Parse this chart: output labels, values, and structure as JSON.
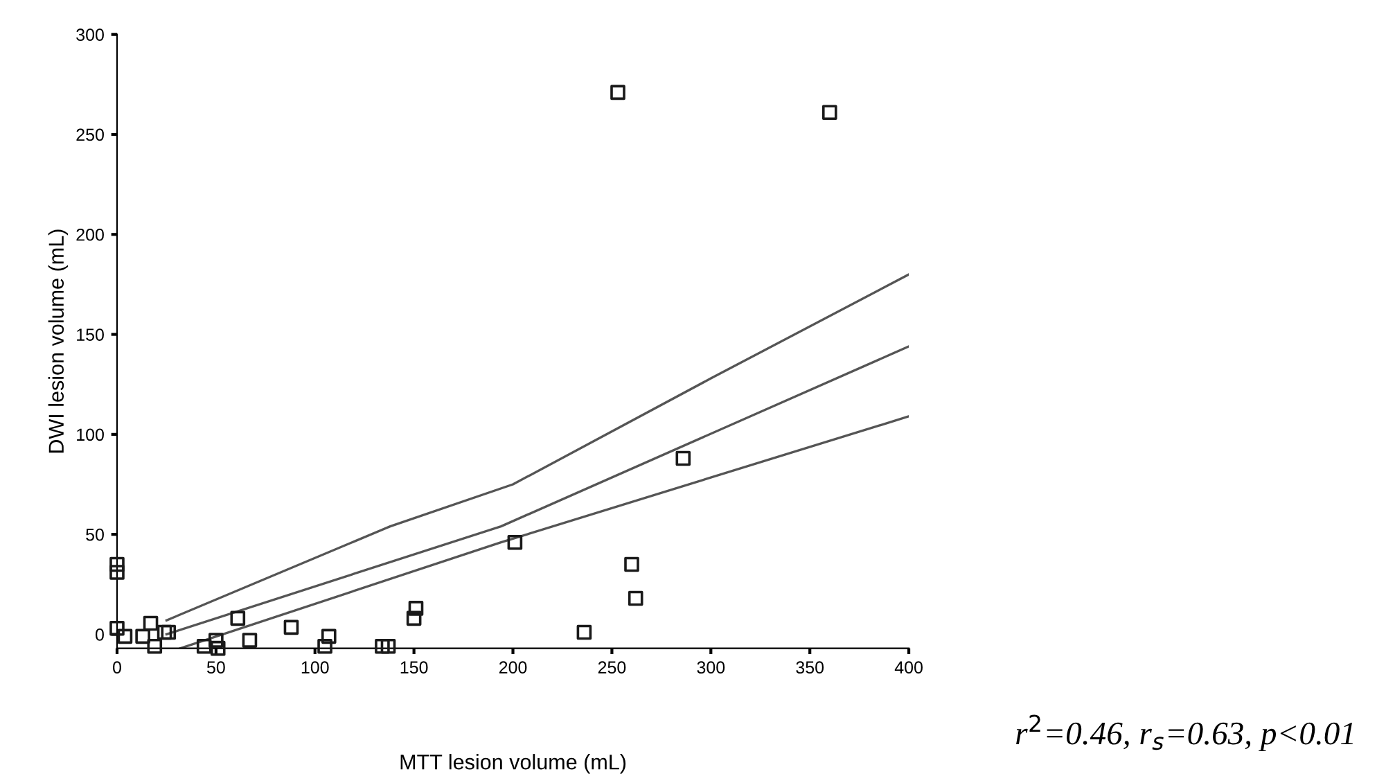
{
  "chart_data": {
    "type": "scatter",
    "xlabel": "MTT lesion volume (mL)",
    "ylabel": "DWI lesion volume (mL)",
    "xlim": [
      0,
      400
    ],
    "ylim": [
      -7,
      300
    ],
    "xticks": [
      0,
      50,
      100,
      150,
      200,
      250,
      300,
      350,
      400
    ],
    "yticks": [
      0,
      50,
      100,
      150,
      200,
      250,
      300
    ],
    "grid": false,
    "legend": false,
    "marker": "square",
    "annotations": [
      "r$^{2}$=0.46, r$_{s}$=0.63, p<0.01"
    ],
    "series": [
      {
        "color": "#1a1a1a",
        "x": [
          253,
          360,
          286,
          201,
          260,
          262,
          151,
          150,
          236,
          0,
          0,
          61,
          88,
          67,
          107,
          105,
          44,
          50,
          51,
          134,
          137,
          17,
          13,
          19,
          24,
          26,
          4,
          0
        ],
        "values": [
          271,
          261,
          88,
          46,
          35,
          18,
          13,
          8,
          1,
          31,
          35,
          8,
          3.5,
          -3,
          -1,
          -6,
          -6,
          -3,
          -7,
          -6,
          -6,
          5.5,
          -1,
          -6,
          1,
          1,
          -1,
          3
        ]
      },
      {
        "type": "line",
        "color": "#555555",
        "line_style": "solid",
        "marker": "none",
        "x": [
          25,
          138,
          200,
          300,
          400
        ],
        "values": [
          7,
          54,
          75,
          128,
          180
        ]
      },
      {
        "type": "line",
        "color": "#555555",
        "line_style": "solid",
        "marker": "none",
        "x": [
          25,
          194,
          400
        ],
        "values": [
          0,
          54,
          144
        ]
      },
      {
        "type": "line",
        "color": "#555555",
        "line_style": "solid",
        "marker": "none",
        "x": [
          32,
          194,
          400
        ],
        "values": [
          -7,
          46,
          109
        ]
      }
    ]
  }
}
